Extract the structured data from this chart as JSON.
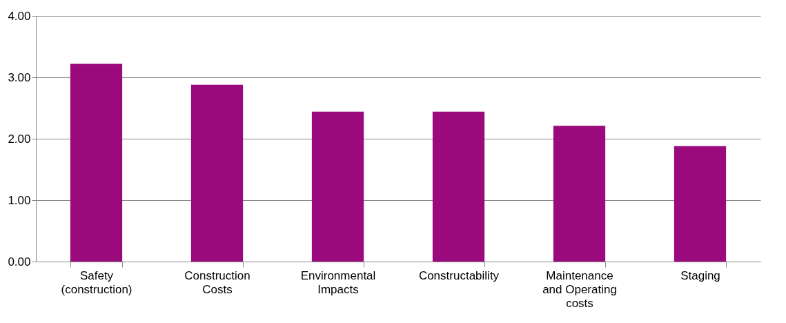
{
  "chart_data": {
    "type": "bar",
    "categories": [
      "Safety (construction)",
      "Construction Costs",
      "Environmental Impacts",
      "Constructability",
      "Maintenance and Operating costs",
      "Staging"
    ],
    "values": [
      3.22,
      2.88,
      2.44,
      2.44,
      2.21,
      1.88
    ],
    "color": "#9b0a7c",
    "ylim": [
      0,
      4
    ],
    "yticks": [
      {
        "value": 0,
        "label": "0.00"
      },
      {
        "value": 1,
        "label": "1.00"
      },
      {
        "value": 2,
        "label": "2.00"
      },
      {
        "value": 3,
        "label": "3.00"
      },
      {
        "value": 4,
        "label": "4.00"
      }
    ],
    "grid": "y"
  }
}
